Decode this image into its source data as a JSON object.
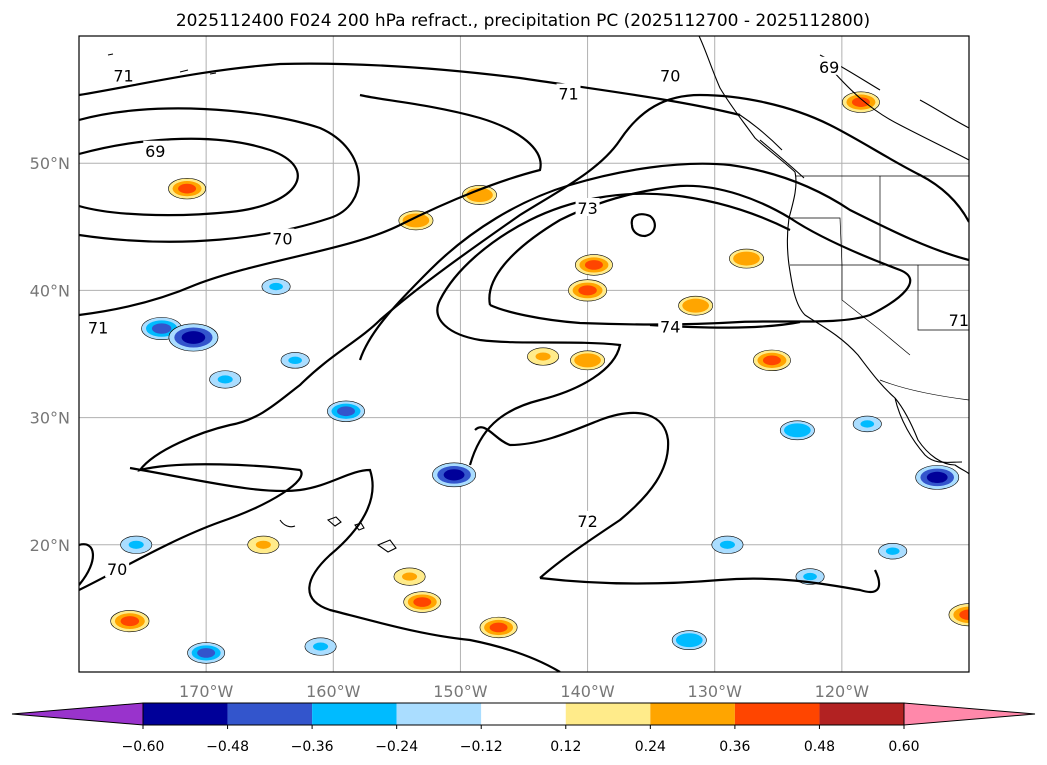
{
  "chart_data": {
    "type": "contour-map",
    "title": "2025112400 F024 200 hPa refract., precipitation PC (2025112700 - 2025112800)",
    "map": {
      "lon_range": [
        -180,
        -110
      ],
      "lat_range": [
        10,
        60
      ],
      "x_ticks": [
        -170,
        -160,
        -150,
        -140,
        -130,
        -120
      ],
      "x_tick_labels": [
        "170°W",
        "160°W",
        "150°W",
        "140°W",
        "130°W",
        "120°W"
      ],
      "y_ticks": [
        20,
        30,
        40,
        50
      ],
      "y_tick_labels": [
        "20°N",
        "30°N",
        "40°N",
        "50°N"
      ],
      "grid": true
    },
    "contours": {
      "variable": "200 hPa refractivity",
      "levels": [
        69,
        70,
        71,
        72,
        73,
        74
      ],
      "labels": [
        {
          "text": "71",
          "lon": -176.5,
          "lat": 56.8
        },
        {
          "text": "71",
          "lon": -141.5,
          "lat": 55.4
        },
        {
          "text": "70",
          "lon": -133.5,
          "lat": 56.8
        },
        {
          "text": "69",
          "lon": -121.0,
          "lat": 57.5
        },
        {
          "text": "69",
          "lon": -174.0,
          "lat": 50.9
        },
        {
          "text": "70",
          "lon": -164.0,
          "lat": 44.0
        },
        {
          "text": "73",
          "lon": -140.0,
          "lat": 46.4
        },
        {
          "text": "71",
          "lon": -178.5,
          "lat": 37.0
        },
        {
          "text": "74",
          "lon": -133.5,
          "lat": 37.1
        },
        {
          "text": "72",
          "lon": -140.0,
          "lat": 21.8
        },
        {
          "text": "70",
          "lon": -177.0,
          "lat": 18.0
        },
        {
          "text": "71",
          "lon": -110.8,
          "lat": 37.6
        }
      ]
    },
    "filled": {
      "variable": "precipitation PC",
      "colorbar_levels": [
        -0.6,
        -0.48,
        -0.36,
        -0.24,
        -0.12,
        0.12,
        0.24,
        0.36,
        0.48,
        0.6
      ],
      "colorbar_tick_labels": [
        "−0.60",
        "−0.48",
        "−0.36",
        "−0.24",
        "−0.12",
        "0.12",
        "0.24",
        "0.36",
        "0.48",
        "0.60"
      ],
      "colors": [
        "#9933cc",
        "#000099",
        "#3355cc",
        "#00bbff",
        "#aaddff",
        "#ffffff",
        "#ffeb8a",
        "#ffa500",
        "#ff4500",
        "#b22222",
        "#ff88aa"
      ],
      "blobs": [
        {
          "lon": -171.5,
          "lat": 48.0,
          "value": 0.4
        },
        {
          "lon": -173.5,
          "lat": 37.0,
          "value": -0.45
        },
        {
          "lon": -171.0,
          "lat": 36.3,
          "value": -0.6
        },
        {
          "lon": -159.0,
          "lat": 30.5,
          "value": -0.4
        },
        {
          "lon": -168.5,
          "lat": 33.0,
          "value": -0.3
        },
        {
          "lon": -163.0,
          "lat": 34.5,
          "value": -0.25
        },
        {
          "lon": -150.5,
          "lat": 25.5,
          "value": -0.5
        },
        {
          "lon": -153.5,
          "lat": 45.5,
          "value": 0.35
        },
        {
          "lon": -140.0,
          "lat": 40.0,
          "value": 0.42
        },
        {
          "lon": -148.5,
          "lat": 47.5,
          "value": 0.35
        },
        {
          "lon": -139.5,
          "lat": 42.0,
          "value": 0.4
        },
        {
          "lon": -143.5,
          "lat": 34.8,
          "value": 0.3
        },
        {
          "lon": -140.0,
          "lat": 34.5,
          "value": 0.35
        },
        {
          "lon": -131.5,
          "lat": 38.8,
          "value": 0.35
        },
        {
          "lon": -125.5,
          "lat": 34.5,
          "value": 0.4
        },
        {
          "lon": -123.5,
          "lat": 29.0,
          "value": -0.35
        },
        {
          "lon": -112.5,
          "lat": 25.3,
          "value": -0.5
        },
        {
          "lon": -110.0,
          "lat": 14.5,
          "value": 0.45
        },
        {
          "lon": -153.0,
          "lat": 15.5,
          "value": 0.4
        },
        {
          "lon": -147.0,
          "lat": 13.5,
          "value": 0.4
        },
        {
          "lon": -176.0,
          "lat": 14.0,
          "value": 0.42
        },
        {
          "lon": -170.0,
          "lat": 11.5,
          "value": -0.4
        },
        {
          "lon": -161.0,
          "lat": 12.0,
          "value": -0.3
        },
        {
          "lon": -164.5,
          "lat": 40.3,
          "value": -0.25
        },
        {
          "lon": -175.5,
          "lat": 20.0,
          "value": -0.3
        },
        {
          "lon": -129.0,
          "lat": 20.0,
          "value": -0.3
        },
        {
          "lon": -132.0,
          "lat": 12.5,
          "value": -0.35
        },
        {
          "lon": -122.5,
          "lat": 17.5,
          "value": -0.25
        },
        {
          "lon": -118.0,
          "lat": 29.5,
          "value": -0.25
        },
        {
          "lon": -116.0,
          "lat": 19.5,
          "value": -0.25
        },
        {
          "lon": -154.0,
          "lat": 17.5,
          "value": 0.3
        },
        {
          "lon": -165.5,
          "lat": 20.0,
          "value": 0.3
        },
        {
          "lon": -127.5,
          "lat": 42.5,
          "value": 0.35
        },
        {
          "lon": -118.5,
          "lat": 54.8,
          "value": 0.4
        }
      ]
    }
  }
}
